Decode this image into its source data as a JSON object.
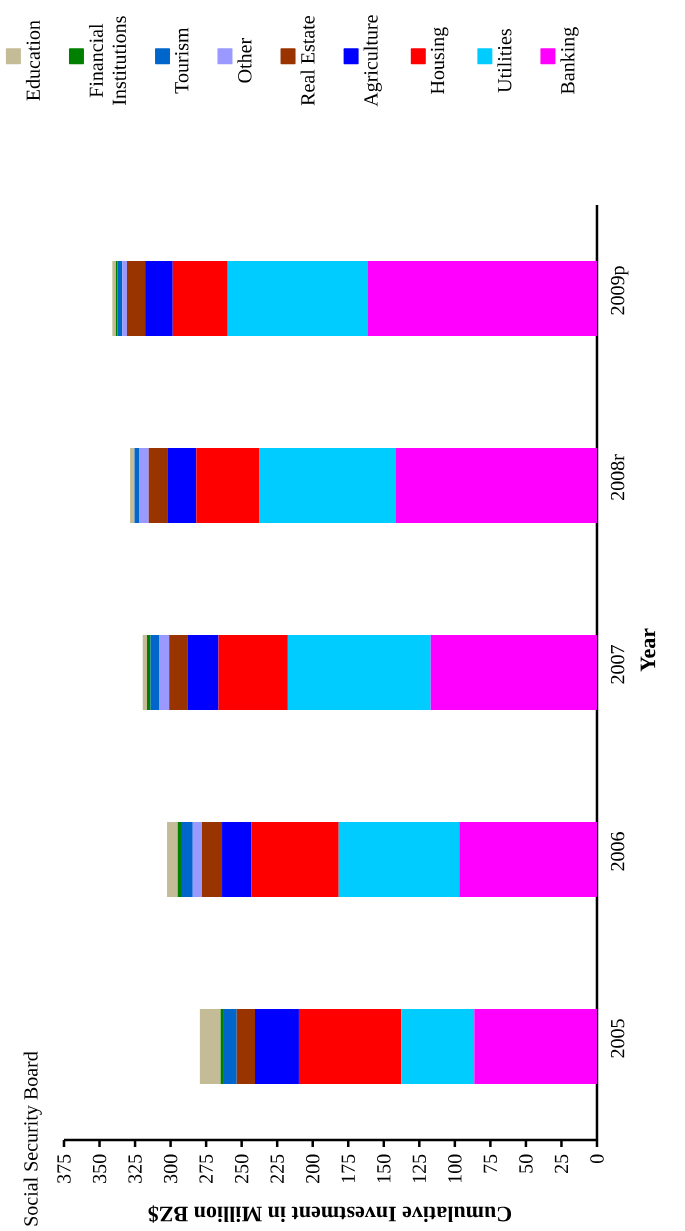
{
  "chart_data": {
    "type": "bar",
    "stacked": true,
    "orientation": "horizontal",
    "xlabel": "Cumulative Investment in Million BZ$",
    "ylabel": "Year",
    "categories": [
      "2009p",
      "2008r",
      "2007",
      "2006",
      "2005"
    ],
    "series": [
      {
        "name": "Banking",
        "color": "#ff00ff",
        "values": [
          161.1,
          141.4,
          117,
          96.9,
          86.3
        ]
      },
      {
        "name": "Utilities",
        "color": "#00ccff",
        "values": [
          98.7,
          96.4,
          100.5,
          84.8,
          51.4
        ]
      },
      {
        "name": "Housing",
        "color": "#ff0000",
        "values": [
          38.7,
          44.1,
          48.8,
          61.4,
          72
        ]
      },
      {
        "name": "Agriculture",
        "color": "#0000ff",
        "values": [
          19.4,
          20.4,
          21.9,
          20.7,
          30.9
        ]
      },
      {
        "name": "Real Estate",
        "color": "#993300",
        "values": [
          12.8,
          13.1,
          12.8,
          14.1,
          12.9
        ]
      },
      {
        "name": "Other",
        "color": "#9999ff",
        "values": [
          3.3,
          6.5,
          6.8,
          6.5,
          0
        ]
      },
      {
        "name": "Tourism",
        "color": "#0066cc",
        "values": [
          3.3,
          3.5,
          6.3,
          7.6,
          9
        ]
      },
      {
        "name": "Financial Institutions",
        "color": "#008000",
        "values": [
          1.2,
          0,
          2.5,
          3,
          2.3
        ]
      },
      {
        "name": "Education",
        "color": "#c4bc96",
        "values": [
          2.5,
          3.1,
          3,
          7.5,
          14.6
        ]
      }
    ],
    "xlim": [
      375,
      0
    ],
    "xticks": [
      375,
      350,
      325,
      300,
      275,
      250,
      225,
      200,
      175,
      150,
      125,
      100,
      75,
      50,
      25,
      0
    ],
    "legend": "top",
    "annotations": [
      "Social Security Board"
    ]
  }
}
